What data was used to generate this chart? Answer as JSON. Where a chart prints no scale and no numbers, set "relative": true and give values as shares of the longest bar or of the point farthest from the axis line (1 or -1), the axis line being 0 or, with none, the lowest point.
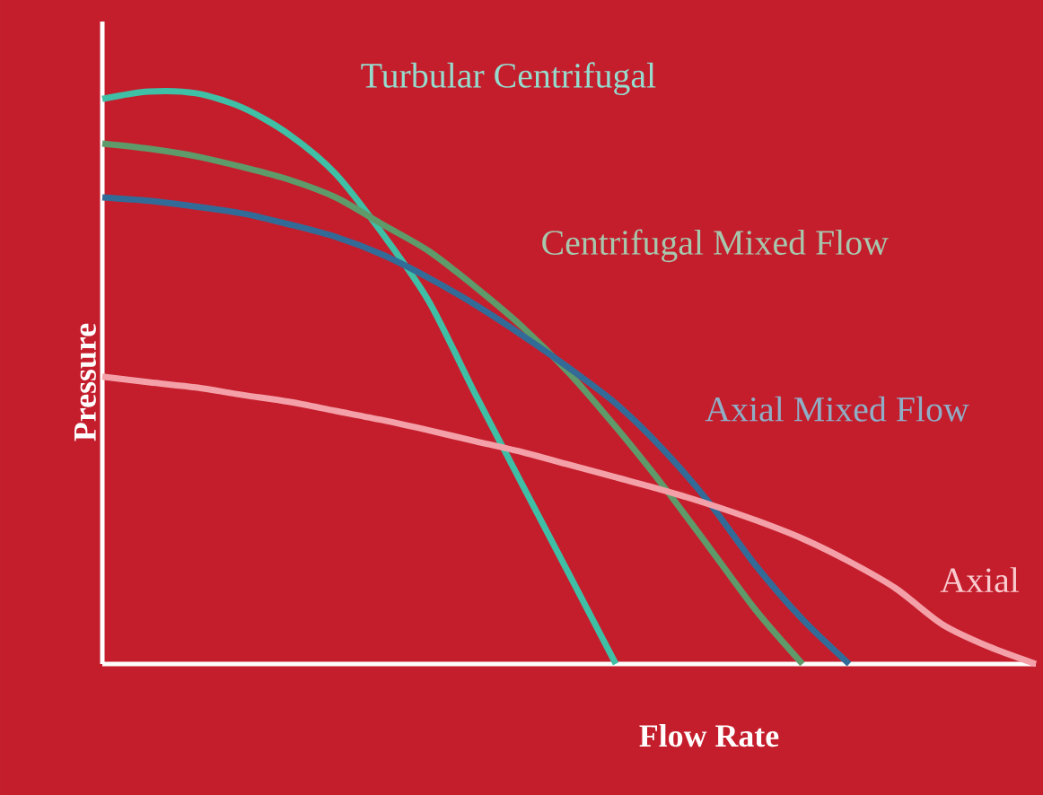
{
  "chart_data": {
    "type": "line",
    "relative": true,
    "xlabel": "Flow Rate",
    "ylabel": "Pressure",
    "marker": "none",
    "line_style": "solid",
    "categories": [
      null,
      null,
      null,
      null,
      null,
      null,
      null,
      null,
      null,
      null,
      null,
      null,
      null,
      null,
      null,
      null,
      null,
      null,
      null,
      null,
      null
    ],
    "series": [
      {
        "name": "Turbular Centrifugal",
        "color": "#3fbfa5",
        "values": [
          0.987,
          1,
          0.997,
          0.972,
          0.925,
          0.856,
          0.752,
          0.633,
          0.47,
          0.313,
          0.157,
          0,
          null,
          null,
          null,
          null,
          null,
          null,
          null,
          null,
          null
        ]
      },
      {
        "name": "Centrifugal Mixed Flow",
        "color": "#5f9a6a",
        "values": [
          0.909,
          0.9,
          0.887,
          0.868,
          0.846,
          0.815,
          0.768,
          0.721,
          0.658,
          0.589,
          0.508,
          0.414,
          0.313,
          0.204,
          0.094,
          0,
          null,
          null,
          null,
          null,
          null
        ]
      },
      {
        "name": "Axial Mixed Flow",
        "color": "#336b98",
        "values": [
          0.815,
          0.809,
          0.799,
          0.787,
          0.768,
          0.746,
          0.715,
          0.674,
          0.627,
          0.574,
          0.517,
          0.455,
          0.376,
          0.282,
          0.172,
          0.078,
          0,
          null,
          null,
          null,
          null
        ]
      },
      {
        "name": "Axial",
        "color": "#f4a0a8",
        "values": [
          0.502,
          0.492,
          0.483,
          0.47,
          0.458,
          0.442,
          0.426,
          0.408,
          0.389,
          0.37,
          0.348,
          0.326,
          0.304,
          0.279,
          0.251,
          0.219,
          0.179,
          0.132,
          0.069,
          0.03,
          0
        ]
      }
    ]
  }
}
